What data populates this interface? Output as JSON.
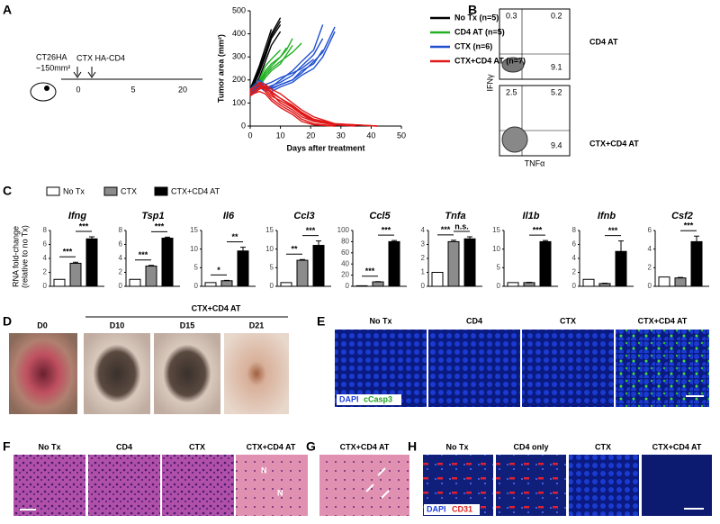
{
  "panel_letters": [
    "A",
    "B",
    "C",
    "D",
    "E",
    "F",
    "G",
    "H"
  ],
  "schematic": {
    "model": "CT26HA",
    "size": "~150mm²",
    "treatment": "CTX HA-CD4",
    "ticks": [
      0,
      5,
      20
    ]
  },
  "chart_data": [
    {
      "type": "line",
      "ylabel": "Tumor area (mm²)",
      "xlabel": "Days after treatment",
      "xlim": [
        0,
        50
      ],
      "xticks": [
        0,
        10,
        20,
        30,
        40,
        50
      ],
      "ylim": [
        0,
        500
      ],
      "yticks": [
        0,
        100,
        200,
        300,
        400,
        500
      ],
      "series": [
        {
          "name": "No Tx (n=5)",
          "color": "#000000",
          "x": [
            0,
            3,
            5,
            7,
            10
          ],
          "values": [
            [
              150,
              250,
              320,
              400,
              470
            ],
            [
              140,
              230,
              300,
              380,
              440
            ],
            [
              130,
              210,
              280,
              350,
              410
            ],
            [
              160,
              260,
              340,
              420,
              null
            ],
            [
              145,
              240,
              310,
              390,
              455
            ]
          ]
        },
        {
          "name": "CD4 AT (n=5)",
          "color": "#22b022",
          "x": [
            0,
            3,
            5,
            7,
            10,
            12,
            14,
            17
          ],
          "values": [
            [
              150,
              190,
              240,
              270,
              300,
              330,
              380,
              null
            ],
            [
              140,
              180,
              220,
              250,
              280,
              300,
              320,
              360
            ],
            [
              130,
              170,
              210,
              240,
              270,
              310,
              350,
              null
            ],
            [
              160,
              200,
              260,
              290,
              330,
              null,
              null,
              null
            ],
            [
              145,
              185,
              230,
              260,
              300,
              340,
              null,
              null
            ]
          ]
        },
        {
          "name": "CTX (n=6)",
          "color": "#2050d0",
          "x": [
            0,
            3,
            5,
            7,
            10,
            14,
            17,
            21,
            24,
            28
          ],
          "values": [
            [
              150,
              190,
              170,
              160,
              180,
              200,
              230,
              280,
              320,
              430
            ],
            [
              140,
              180,
              160,
              150,
              170,
              190,
              220,
              250,
              300,
              410
            ],
            [
              130,
              170,
              150,
              170,
              200,
              240,
              280,
              330,
              440,
              null
            ],
            [
              160,
              200,
              180,
              190,
              210,
              230,
              250,
              290,
              null,
              null
            ],
            [
              145,
              175,
              165,
              175,
              190,
              220,
              260,
              310,
              380,
              null
            ],
            [
              135,
              180,
              170,
              165,
              180,
              200,
              240,
              270,
              330,
              null
            ]
          ]
        },
        {
          "name": "CTX+CD4 AT (n=7)",
          "color": "#e01818",
          "x": [
            0,
            3,
            5,
            7,
            10,
            14,
            17,
            21,
            28,
            35,
            42
          ],
          "values": [
            [
              150,
              190,
              180,
              160,
              140,
              100,
              70,
              40,
              10,
              5,
              0
            ],
            [
              140,
              170,
              160,
              130,
              110,
              80,
              50,
              20,
              5,
              0,
              null
            ],
            [
              130,
              160,
              170,
              150,
              120,
              90,
              60,
              30,
              10,
              0,
              null
            ],
            [
              160,
              180,
              150,
              120,
              90,
              60,
              30,
              10,
              0,
              null,
              null
            ],
            [
              145,
              165,
              175,
              140,
              100,
              70,
              40,
              20,
              5,
              null,
              null
            ],
            [
              135,
              150,
              140,
              110,
              80,
              50,
              20,
              5,
              0,
              null,
              null
            ],
            [
              155,
              185,
              165,
              145,
              120,
              85,
              55,
              25,
              10,
              5,
              0
            ]
          ]
        }
      ]
    },
    {
      "type": "bar",
      "ylabel": [
        "RNA fold-change",
        "(relative to no Tx)"
      ],
      "series": [
        {
          "name": "No Tx",
          "color": "#ffffff"
        },
        {
          "name": "CTX",
          "color": "#8c8c8c"
        },
        {
          "name": "CTX+CD4 AT",
          "color": "#000000"
        }
      ],
      "genes": [
        {
          "title": "Ifng",
          "values": [
            1,
            3.3,
            6.8
          ],
          "errors": [
            0,
            0.15,
            0.3
          ],
          "ylim": [
            0,
            8
          ],
          "yticks": [
            0,
            2,
            4,
            6,
            8
          ],
          "sig_left": "***",
          "sig_right": "***"
        },
        {
          "title": "Tsp1",
          "values": [
            1,
            2.9,
            6.9
          ],
          "errors": [
            0,
            0.1,
            0.15
          ],
          "ylim": [
            0,
            8
          ],
          "yticks": [
            0,
            2,
            4,
            6,
            8
          ],
          "sig_left": "***",
          "sig_right": "***"
        },
        {
          "title": "Il6",
          "values": [
            1,
            1.5,
            9.5
          ],
          "errors": [
            0,
            0.1,
            1
          ],
          "ylim": [
            0,
            15
          ],
          "yticks": [
            0,
            5,
            10,
            15
          ],
          "sig_left": "*",
          "sig_right": "**"
        },
        {
          "title": "Ccl3",
          "values": [
            1,
            7,
            11
          ],
          "errors": [
            0,
            0.2,
            1.2
          ],
          "ylim": [
            0,
            15
          ],
          "yticks": [
            0,
            5,
            10,
            15
          ],
          "sig_left": "**",
          "sig_right": "***"
        },
        {
          "title": "Ccl5",
          "values": [
            1,
            8,
            80
          ],
          "errors": [
            0,
            0.5,
            2
          ],
          "ylim": [
            0,
            100
          ],
          "yticks": [
            0,
            20,
            40,
            60,
            80,
            100
          ],
          "sig_left": "***",
          "sig_right": "***"
        },
        {
          "title": "Tnfa",
          "values": [
            1,
            3.2,
            3.4
          ],
          "errors": [
            0,
            0.1,
            0.15
          ],
          "ylim": [
            0,
            4
          ],
          "yticks": [
            0,
            1,
            2,
            3,
            4
          ],
          "sig_left": "***",
          "sig_right": "n.s."
        },
        {
          "title": "Il1b",
          "values": [
            1,
            1,
            12
          ],
          "errors": [
            0,
            0.1,
            0.3
          ],
          "ylim": [
            0,
            15
          ],
          "yticks": [
            0,
            5,
            10,
            15
          ],
          "sig_right": "***"
        },
        {
          "title": "Ifnb",
          "values": [
            1,
            0.4,
            5
          ],
          "errors": [
            0,
            0.05,
            1.5
          ],
          "ylim": [
            0,
            8
          ],
          "yticks": [
            0,
            2,
            4,
            6,
            8
          ],
          "sig_right": "***"
        },
        {
          "title": "Csf2",
          "values": [
            1,
            0.9,
            4.8
          ],
          "errors": [
            0,
            0.05,
            0.6
          ],
          "ylim": [
            0,
            6
          ],
          "yticks": [
            0,
            2,
            4,
            6
          ],
          "sig_right": "***"
        }
      ]
    }
  ],
  "flow": {
    "y_label": "IFNγ",
    "x_label": "TNFα",
    "plots": [
      {
        "label": "CD4 AT",
        "q_ul": "0.3",
        "q_ur": "0.2",
        "q_lr": "9.1"
      },
      {
        "label": "CTX+CD4 AT",
        "q_ul": "2.5",
        "q_ur": "5.2",
        "q_lr": "9.4"
      }
    ]
  },
  "panel_d": {
    "header": "CTX+CD4 AT",
    "labels": [
      "D0",
      "D10",
      "D15",
      "D21"
    ]
  },
  "panel_e": {
    "labels": [
      "No Tx",
      "CD4",
      "CTX",
      "CTX+CD4 AT"
    ],
    "stain1": "DAPI",
    "stain2": "cCasp3"
  },
  "panel_f": {
    "labels": [
      "No Tx",
      "CD4",
      "CTX",
      "CTX+CD4 AT"
    ],
    "necrosis": "N"
  },
  "panel_g": {
    "label": "CTX+CD4 AT"
  },
  "panel_h": {
    "labels": [
      "No Tx",
      "CD4 only",
      "CTX",
      "CTX+CD4 AT"
    ],
    "stain1": "DAPI",
    "stain2": "CD31"
  }
}
